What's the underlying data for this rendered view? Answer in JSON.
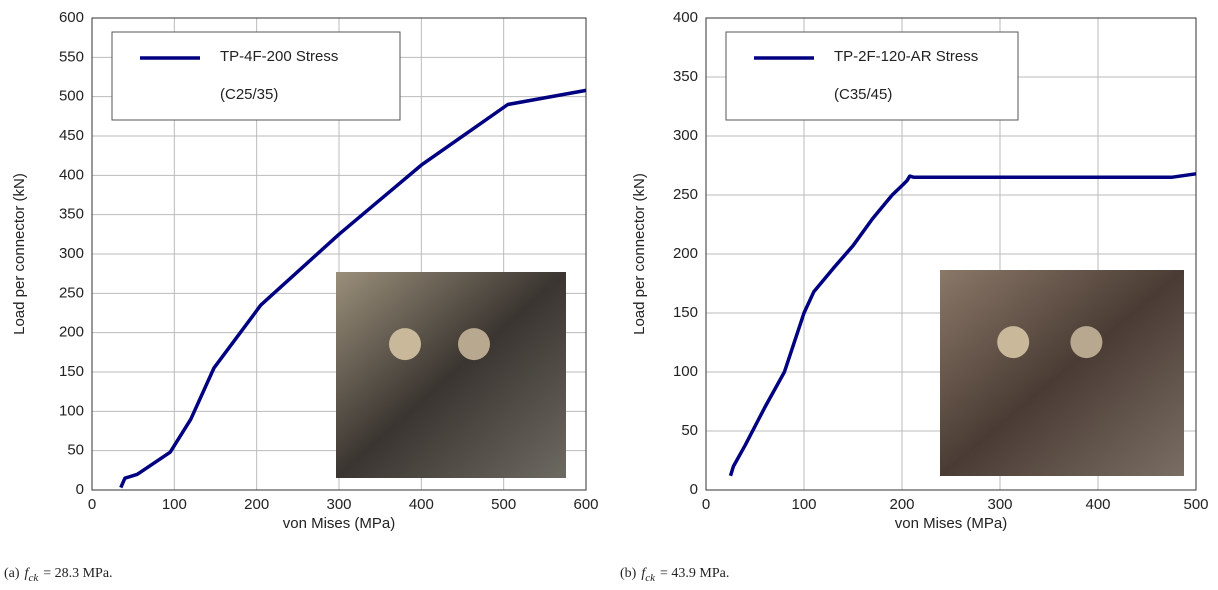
{
  "chart_data": [
    {
      "type": "line",
      "x": [
        35,
        37,
        40,
        55,
        95,
        120,
        148,
        205,
        300,
        400,
        505,
        600
      ],
      "series": [
        {
          "name": "TP-4F-200 Stress",
          "color": "#000080",
          "values": [
            3,
            8,
            15,
            20,
            48,
            90,
            155,
            235,
            325,
            413,
            490,
            508
          ]
        }
      ],
      "legend_note": "(C25/35)",
      "xlabel": "von Mises (MPa)",
      "ylabel": "Load per connector (kN)",
      "xlim": [
        0,
        600
      ],
      "ylim": [
        0,
        600
      ],
      "xticks": [
        0,
        100,
        200,
        300,
        400,
        500,
        600
      ],
      "yticks": [
        0,
        50,
        100,
        150,
        200,
        250,
        300,
        350,
        400,
        450,
        500,
        550,
        600
      ],
      "grid": true,
      "caption": {
        "label": "(a)",
        "symbol": "f",
        "subscript": "ck",
        "text": "= 28.3 MPa."
      }
    },
    {
      "type": "line",
      "x": [
        25,
        28,
        40,
        60,
        80,
        100,
        110,
        130,
        150,
        170,
        190,
        200,
        205,
        208,
        212,
        475,
        500
      ],
      "series": [
        {
          "name": "TP-2F-120-AR Stress",
          "color": "#000080",
          "values": [
            12,
            20,
            38,
            70,
            100,
            150,
            168,
            188,
            207,
            230,
            250,
            258,
            262,
            266,
            265,
            265,
            268
          ]
        }
      ],
      "legend_note": "(C35/45)",
      "xlabel": "von Mises (MPa)",
      "ylabel": "Load per connector (kN)",
      "xlim": [
        0,
        500
      ],
      "ylim": [
        0,
        400
      ],
      "xticks": [
        0,
        100,
        200,
        300,
        400,
        500
      ],
      "yticks": [
        0,
        50,
        100,
        150,
        200,
        250,
        300,
        350,
        400
      ],
      "grid": true,
      "caption": {
        "label": "(b)",
        "symbol": "f",
        "subscript": "ck",
        "text": "= 43.9 MPa."
      }
    }
  ]
}
